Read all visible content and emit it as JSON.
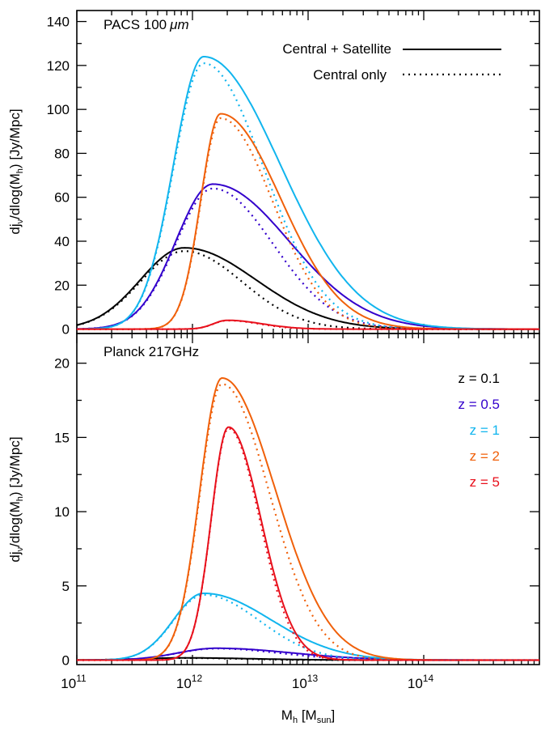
{
  "chart_data": [
    {
      "type": "line",
      "title": "PACS 100µm",
      "xlabel": "Mh [Msun]",
      "ylabel": "djν/dlog(Mh) [Jy/Mpc]",
      "x_scale": "log",
      "xlim": [
        100000000000.0,
        1000000000000000.0
      ],
      "ylim": [
        -2,
        145
      ],
      "yticks": [
        0,
        20,
        40,
        60,
        80,
        100,
        120,
        140
      ],
      "legend": {
        "position": "top-right",
        "entries": [
          {
            "label": "Central + Satellite",
            "style": "solid"
          },
          {
            "label": "Central only",
            "style": "dotted"
          }
        ]
      },
      "series": [
        {
          "z": "0.1",
          "color": "#000000",
          "total": {
            "peak_mh": 850000000000.0,
            "peak": 37,
            "sigma_low": 0.38,
            "sigma_high": 0.62
          },
          "central": {
            "peak_mh": 850000000000.0,
            "peak": 35.5,
            "sigma_low": 0.38,
            "sigma_high": 0.5
          }
        },
        {
          "z": "0.5",
          "color": "#3300cc",
          "total": {
            "peak_mh": 1500000000000.0,
            "peak": 66,
            "sigma_low": 0.32,
            "sigma_high": 0.66
          },
          "central": {
            "peak_mh": 1500000000000.0,
            "peak": 64,
            "sigma_low": 0.32,
            "sigma_high": 0.52
          }
        },
        {
          "z": "1",
          "color": "#11b5ee",
          "total": {
            "peak_mh": 1250000000000.0,
            "peak": 124,
            "sigma_low": 0.26,
            "sigma_high": 0.66
          },
          "central": {
            "peak_mh": 1250000000000.0,
            "peak": 121,
            "sigma_low": 0.26,
            "sigma_high": 0.52
          }
        },
        {
          "z": "2",
          "color": "#f0600a",
          "total": {
            "peak_mh": 1750000000000.0,
            "peak": 98,
            "sigma_low": 0.17,
            "sigma_high": 0.52
          },
          "central": {
            "peak_mh": 1750000000000.0,
            "peak": 96,
            "sigma_low": 0.17,
            "sigma_high": 0.45
          }
        },
        {
          "z": "5",
          "color": "#e8101c",
          "total": {
            "peak_mh": 2000000000000.0,
            "peak": 4,
            "sigma_low": 0.12,
            "sigma_high": 0.3
          },
          "central": {
            "peak_mh": 2000000000000.0,
            "peak": 3.9,
            "sigma_low": 0.12,
            "sigma_high": 0.28
          }
        }
      ]
    },
    {
      "type": "line",
      "title": "Planck 217GHz",
      "xlabel": "Mh [Msun]",
      "ylabel": "djν/dlog(Mh) [Jy/Mpc]",
      "x_scale": "log",
      "xlim": [
        100000000000.0,
        1000000000000000.0
      ],
      "ylim": [
        -0.3,
        22
      ],
      "yticks": [
        0,
        5,
        10,
        15,
        20
      ],
      "legend": {
        "position": "right",
        "entries": [
          {
            "label": "z = 0.1",
            "color": "#000000"
          },
          {
            "label": "z = 0.5",
            "color": "#3300cc"
          },
          {
            "label": "z = 1",
            "color": "#11b5ee"
          },
          {
            "label": "z = 2",
            "color": "#f0600a"
          },
          {
            "label": "z = 5",
            "color": "#e8101c"
          }
        ]
      },
      "series": [
        {
          "z": "0.1",
          "color": "#000000",
          "total": {
            "peak_mh": 850000000000.0,
            "peak": 0.15,
            "sigma_low": 0.38,
            "sigma_high": 0.6
          },
          "central": {
            "peak_mh": 850000000000.0,
            "peak": 0.14,
            "sigma_low": 0.38,
            "sigma_high": 0.5
          }
        },
        {
          "z": "0.5",
          "color": "#3300cc",
          "total": {
            "peak_mh": 1600000000000.0,
            "peak": 0.8,
            "sigma_low": 0.33,
            "sigma_high": 0.66
          },
          "central": {
            "peak_mh": 1600000000000.0,
            "peak": 0.78,
            "sigma_low": 0.33,
            "sigma_high": 0.55
          }
        },
        {
          "z": "1",
          "color": "#11b5ee",
          "total": {
            "peak_mh": 1250000000000.0,
            "peak": 4.5,
            "sigma_low": 0.26,
            "sigma_high": 0.58
          },
          "central": {
            "peak_mh": 1250000000000.0,
            "peak": 4.4,
            "sigma_low": 0.26,
            "sigma_high": 0.48
          }
        },
        {
          "z": "2",
          "color": "#f0600a",
          "total": {
            "peak_mh": 1800000000000.0,
            "peak": 19,
            "sigma_low": 0.19,
            "sigma_high": 0.46
          },
          "central": {
            "peak_mh": 1800000000000.0,
            "peak": 18.6,
            "sigma_low": 0.19,
            "sigma_high": 0.41
          }
        },
        {
          "z": "5",
          "color": "#e8101c",
          "total": {
            "peak_mh": 2050000000000.0,
            "peak": 15.7,
            "sigma_low": 0.15,
            "sigma_high": 0.28
          },
          "central": {
            "peak_mh": 2050000000000.0,
            "peak": 15.6,
            "sigma_low": 0.15,
            "sigma_high": 0.27
          }
        }
      ]
    }
  ],
  "labels": {
    "top_title": "PACS 100",
    "top_title_unit": "μm",
    "bottom_title": "Planck 217GHz",
    "legend_solid": "Central + Satellite",
    "legend_dotted": "Central only",
    "ylabel_top": {
      "a": "dj",
      "sub_a": "ν",
      "b": "/dlog(M",
      "sub_b": "h",
      "c": ") [Jy/Mpc]"
    },
    "ylabel_bottom": {
      "a": "dj",
      "sub_a": "ν",
      "b": "/dlog(M",
      "sub_b": "h",
      "c": ") [Jy/Mpc]"
    },
    "xlabel": {
      "a": "M",
      "sub_a": "h",
      "b": " [M",
      "sub_b": "sun",
      "c": "]"
    },
    "top_yticks": [
      "0",
      "20",
      "40",
      "60",
      "80",
      "100",
      "120",
      "140"
    ],
    "bottom_yticks": [
      "0",
      "5",
      "10",
      "15",
      "20"
    ],
    "xticks": [
      {
        "base": "10",
        "exp": "11"
      },
      {
        "base": "10",
        "exp": "12"
      },
      {
        "base": "10",
        "exp": "13"
      },
      {
        "base": "10",
        "exp": "14"
      }
    ],
    "z_legend": [
      {
        "label": "z = 0.1",
        "color": "#000000"
      },
      {
        "label": "z = 0.5",
        "color": "#3300cc"
      },
      {
        "label": "z = 1",
        "color": "#11b5ee"
      },
      {
        "label": "z = 2",
        "color": "#f0600a"
      },
      {
        "label": "z = 5",
        "color": "#e8101c"
      }
    ]
  }
}
